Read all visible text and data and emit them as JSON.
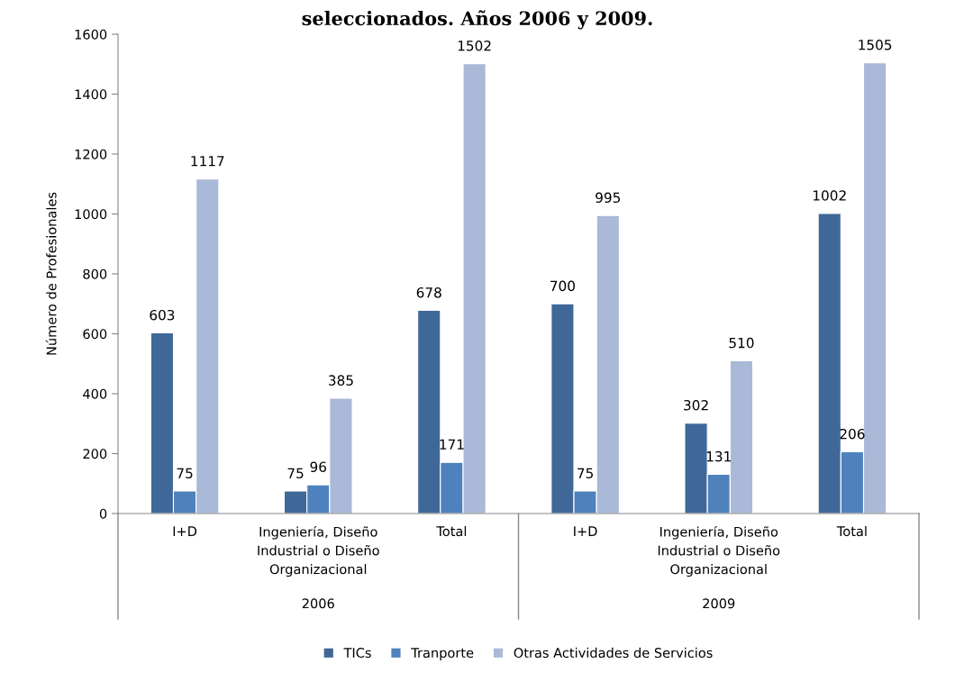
{
  "chart_data": {
    "type": "bar",
    "title": "seleccionados. Años 2006 y 2009.",
    "ylabel": "Número de Profesionales",
    "categories": [
      "I+D",
      "Ingeniería, Diseño\nIndustrial o Diseño\nOrganizacional",
      "Total",
      "I+D",
      "Ingeniería, Diseño\nIndustrial o Diseño\nOrganizacional",
      "Total"
    ],
    "series": [
      {
        "name": "TICs",
        "color": "#3f6899",
        "values": [
          603,
          75,
          678,
          700,
          302,
          1002
        ]
      },
      {
        "name": "Tranporte",
        "color": "#4f81bd",
        "values": [
          75,
          96,
          171,
          75,
          131,
          206
        ]
      },
      {
        "name": "Otras Actividades de Servicios",
        "color": "#a9b9d7",
        "values": [
          1117,
          385,
          1502,
          995,
          510,
          1505
        ]
      }
    ],
    "annotations": [
      "2006",
      "2009"
    ],
    "ylim": [
      0,
      1600
    ],
    "yticks": [
      0,
      200,
      400,
      600,
      800,
      1000,
      1200,
      1400,
      1600
    ],
    "data_labels": true,
    "grid": false,
    "legend": "bottom"
  }
}
